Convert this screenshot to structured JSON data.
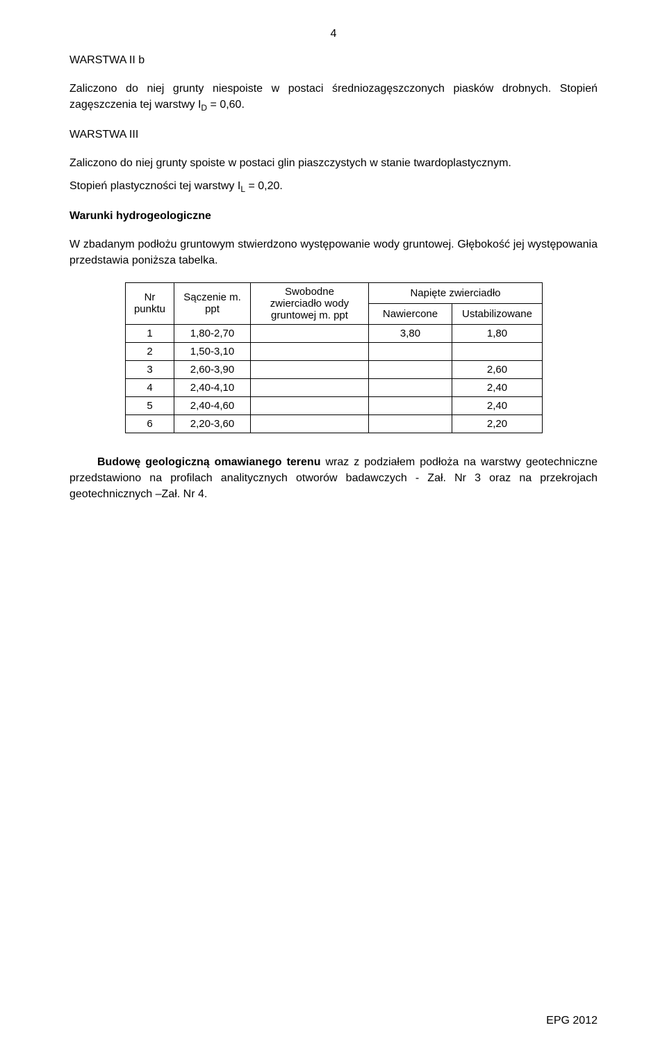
{
  "page_number": "4",
  "sections": {
    "s1": {
      "heading": "WARSTWA II b",
      "p1_a": "Zaliczono do niej grunty niespoiste w postaci średniozagęszczonych piasków drobnych. Stopień zagęszczenia tej warstwy I",
      "p1_sub": "D",
      "p1_b": " = 0,60."
    },
    "s2": {
      "heading": "WARSTWA III",
      "p1_a": "Zaliczono do niej grunty spoiste w postaci glin piaszczystych w stanie twardoplastycznym.",
      "p2_a": "Stopień plastyczności tej warstwy I",
      "p2_sub": "L",
      "p2_b": " = 0,20."
    },
    "s3": {
      "heading": "Warunki hydrogeologiczne",
      "p1": "W  zbadanym podłożu gruntowym stwierdzono występowanie  wody gruntowej. Głębokość jej występowania przedstawia poniższa tabelka."
    },
    "s4": {
      "p1_a": "Budowę geologiczną omawianego terenu",
      "p1_b": " wraz z podziałem podłoża na warstwy geotechniczne przedstawiono na profilach analitycznych otworów badawczych - Zał. Nr 3 oraz na przekrojach geotechnicznych –Zał. Nr 4."
    }
  },
  "table": {
    "headers": {
      "h1": "Nr punktu",
      "h2": "Sączenie m. ppt",
      "h3": "Swobodne zwierciadło wody gruntowej m. ppt",
      "h4": "Napięte zwierciadło",
      "h4a": "Nawiercone",
      "h4b": "Ustabilizowane"
    },
    "rows": [
      {
        "c1": "1",
        "c2": "1,80-2,70",
        "c3": "",
        "c4": "3,80",
        "c5": "1,80"
      },
      {
        "c1": "2",
        "c2": "1,50-3,10",
        "c3": "",
        "c4": "",
        "c5": ""
      },
      {
        "c1": "3",
        "c2": "2,60-3,90",
        "c3": "",
        "c4": "",
        "c5": "2,60"
      },
      {
        "c1": "4",
        "c2": "2,40-4,10",
        "c3": "",
        "c4": "",
        "c5": "2,40"
      },
      {
        "c1": "5",
        "c2": "2,40-4,60",
        "c3": "",
        "c4": "",
        "c5": "2,40"
      },
      {
        "c1": "6",
        "c2": "2,20-3,60",
        "c3": "",
        "c4": "",
        "c5": "2,20"
      }
    ],
    "col_widths": [
      "70px",
      "110px",
      "170px",
      "120px",
      "130px"
    ]
  },
  "footer": "EPG  2012"
}
